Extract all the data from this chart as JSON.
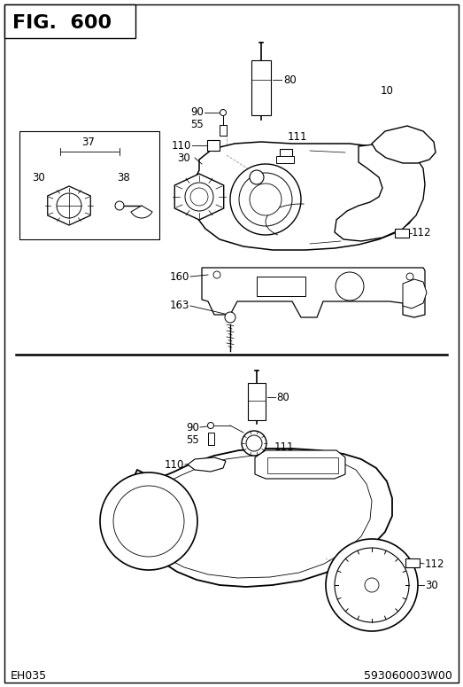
{
  "title": "FIG.  600",
  "footer_left": "EH035",
  "footer_right": "593060003W00",
  "bg_color": "#ffffff",
  "fig_width": 5.23,
  "fig_height": 7.75,
  "dpi": 100
}
